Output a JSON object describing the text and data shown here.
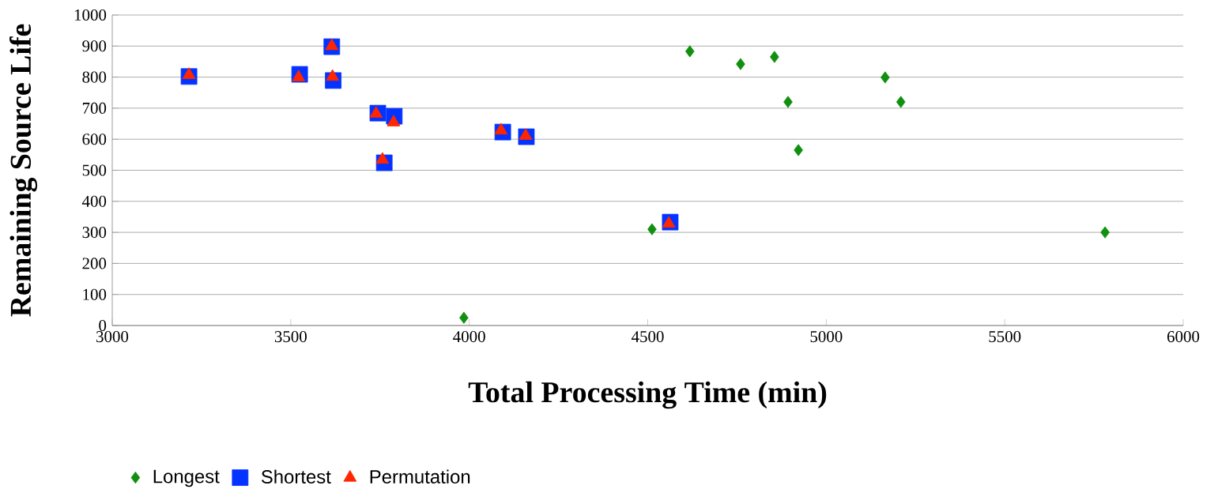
{
  "chart_data": {
    "type": "scatter",
    "xlabel": "Total Processing Time (min)",
    "ylabel": "Remaining Source Life",
    "xlim": [
      3000,
      6000
    ],
    "xticks": [
      3000,
      3500,
      4000,
      4500,
      5000,
      5500,
      6000
    ],
    "ylim": [
      0,
      1000
    ],
    "yticks": [
      0,
      100,
      200,
      300,
      400,
      500,
      600,
      700,
      800,
      900,
      1000
    ],
    "grid": "y",
    "legend": "bottom",
    "series": [
      {
        "name": "Longest",
        "color": "#119010",
        "marker": "diamond",
        "x": [
          4618,
          4760,
          4855,
          4893,
          4922,
          5165,
          5209,
          5781,
          4512,
          3985
        ],
        "values": [
          883,
          842,
          865,
          720,
          565,
          799,
          720,
          300,
          310,
          25
        ]
      },
      {
        "name": "Shortest",
        "color": "#0433ff",
        "marker": "square",
        "x": [
          3215,
          3525,
          3615,
          3619,
          3744,
          3790,
          3762,
          4094,
          4160,
          4563
        ],
        "values": [
          802,
          809,
          898,
          789,
          684,
          674,
          524,
          623,
          608,
          333
        ]
      },
      {
        "name": "Permutation",
        "color": "#ff2600",
        "marker": "triangle",
        "x": [
          3215,
          3522,
          3615,
          3617,
          3739,
          3788,
          3757,
          4089,
          4158,
          4559
        ],
        "values": [
          807,
          799,
          900,
          801,
          682,
          654,
          534,
          628,
          611,
          328
        ]
      }
    ]
  }
}
